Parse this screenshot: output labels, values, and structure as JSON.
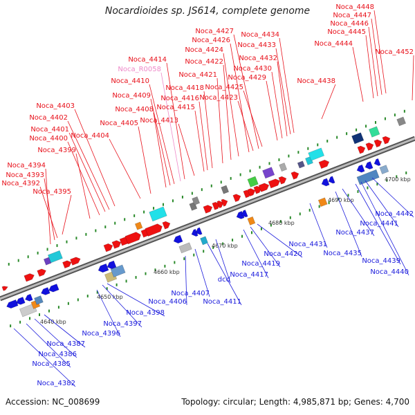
{
  "title": "Nocardioides sp. JS614, complete genome",
  "footer": {
    "accession": "Accession: NC_008699",
    "summary": "Topology: circular; Length: 4,985,871 bp; Genes: 4,700"
  },
  "colors": {
    "top_label": "#e8101a",
    "bottom_label": "#1a1adc",
    "rna_label": "#ee88c8",
    "forward_gene": "#ee1111",
    "reverse_gene": "#1111dd",
    "backbone": "#8c8c8c"
  },
  "ticks": [
    "4640 kbp",
    "4650 kbp",
    "4660 kbp",
    "4670 kbp",
    "4680 kbp",
    "4690 kbp",
    "4700 kbp"
  ],
  "top_labels": [
    "Noca_4394",
    "Noca_4393",
    "Noca_4392",
    "Noca_4395",
    "Noca_4399",
    "Noca_4400",
    "Noca_4401",
    "Noca_4402",
    "Noca_4403",
    "Noca_4404",
    "Noca_4405",
    "Noca_4408",
    "Noca_4409",
    "Noca_4410",
    "Noca_R0058",
    "Noca_4414",
    "Noca_4413",
    "Noca_4415",
    "Noca_4416",
    "Noca_4418",
    "Noca_4421",
    "Noca_4422",
    "Noca_4424",
    "Noca_4426",
    "Noca_4427",
    "Noca_4423",
    "Noca_4425",
    "Noca_4429",
    "Noca_4430",
    "Noca_4432",
    "Noca_4433",
    "Noca_4434",
    "Noca_4438",
    "Noca_4444",
    "Noca_4445",
    "Noca_4446",
    "Noca_4447",
    "Noca_4448",
    "Noca_4452"
  ],
  "bottom_labels": [
    "Noca_4382",
    "Noca_4385",
    "Noca_4386",
    "Noca_4387",
    "Noca_4396",
    "Noca_4397",
    "Noca_4398",
    "Noca_4406",
    "Noca_4407",
    "Noca_4411",
    "dcd",
    "Noca_4417",
    "Noca_4419",
    "Noca_4420",
    "Noca_4431",
    "Noca_4435",
    "Noca_4437",
    "Noca_4439",
    "Noca_4440",
    "Noca_4441",
    "Noca_4442"
  ]
}
